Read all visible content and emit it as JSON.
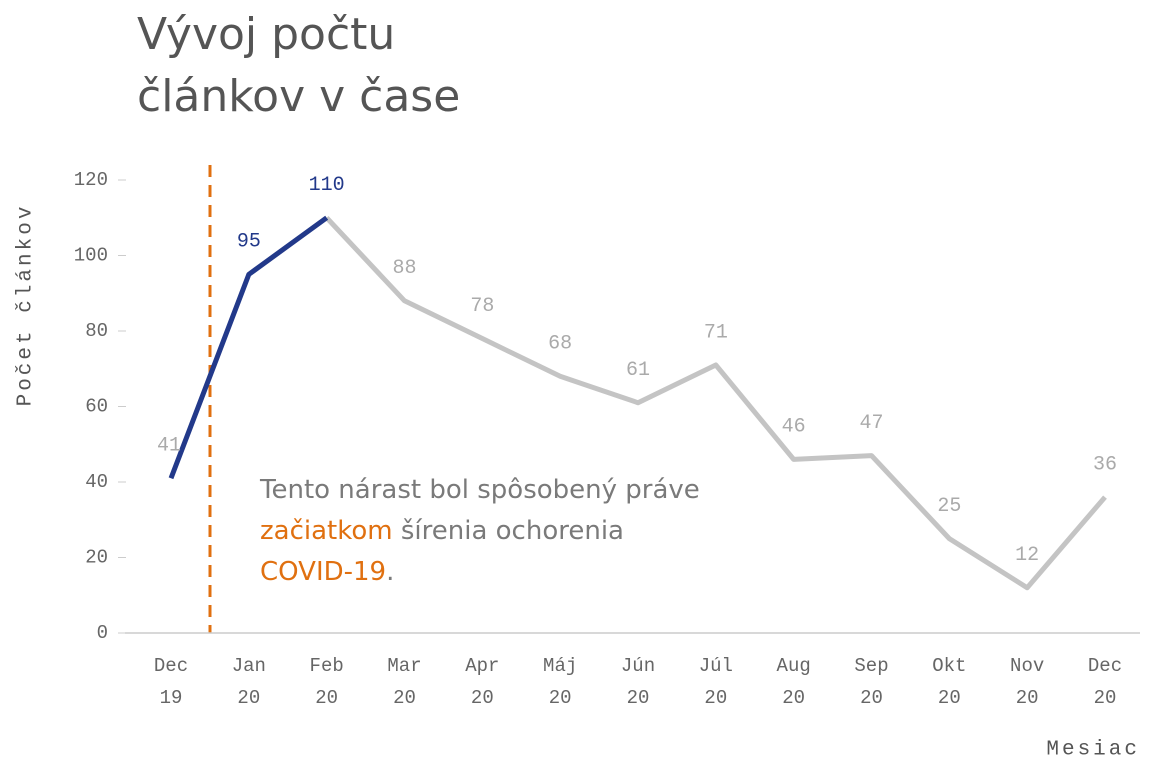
{
  "chart_data": {
    "type": "line",
    "title": [
      "Vývoj počtu",
      "článkov v čase"
    ],
    "y_label": "Počet článkov",
    "x_label": "Mesiac",
    "categories": [
      [
        "Dec",
        "19"
      ],
      [
        "Jan",
        "20"
      ],
      [
        "Feb",
        "20"
      ],
      [
        "Mar",
        "20"
      ],
      [
        "Apr",
        "20"
      ],
      [
        "Máj",
        "20"
      ],
      [
        "Jún",
        "20"
      ],
      [
        "Júl",
        "20"
      ],
      [
        "Aug",
        "20"
      ],
      [
        "Sep",
        "20"
      ],
      [
        "Okt",
        "20"
      ],
      [
        "Nov",
        "20"
      ],
      [
        "Dec",
        "20"
      ]
    ],
    "values": [
      41,
      95,
      110,
      88,
      78,
      68,
      61,
      71,
      46,
      47,
      25,
      12,
      36
    ],
    "color": "#c4c4c4",
    "highlight": {
      "color": "#22398a",
      "range": [
        0,
        2
      ]
    },
    "ylim": [
      0,
      120
    ],
    "yticks": [
      0,
      20,
      40,
      60,
      80,
      100,
      120
    ],
    "annotation": [
      [
        {
          "text": "Tento nárast bol spôsobený práve",
          "color": "#7a7a7a"
        }
      ],
      [
        {
          "text": "začiatkom",
          "color": "#e07010"
        },
        {
          "text": " šírenia ochorenia",
          "color": "#7a7a7a"
        }
      ],
      [
        {
          "text": "COVID-19",
          "color": "#e07010"
        },
        {
          "text": ".",
          "color": "#7a7a7a"
        }
      ]
    ]
  }
}
